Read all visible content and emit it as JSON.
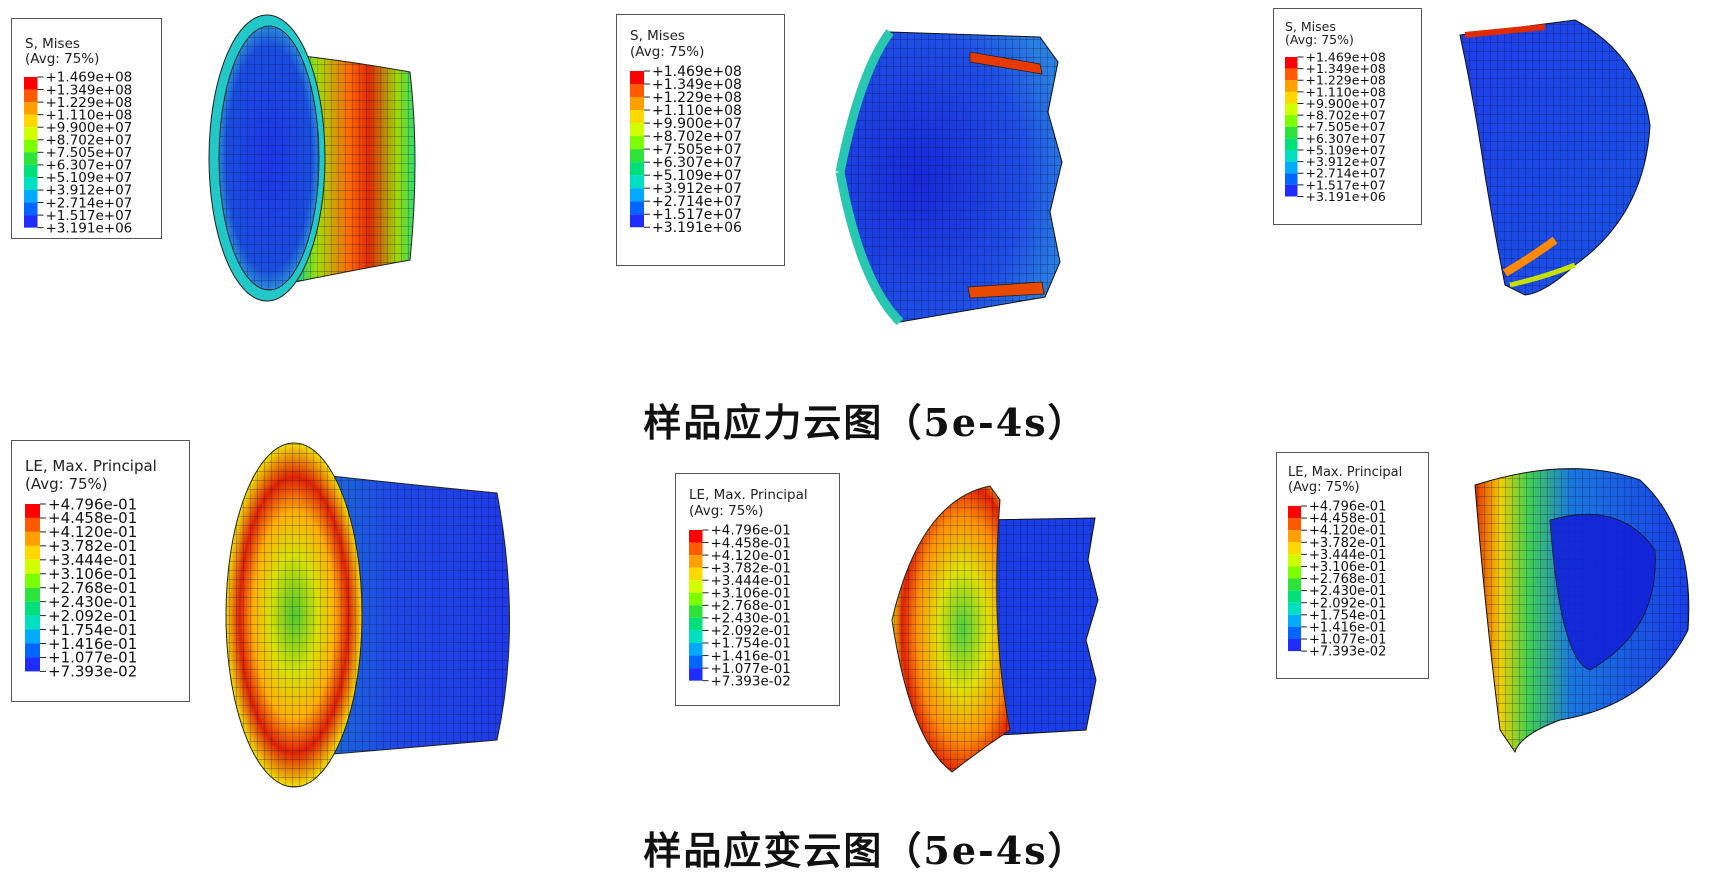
{
  "stress_legend": {
    "title": "S, Mises",
    "avg": "(Avg: 75%)",
    "values": [
      "+1.469e+08",
      "+1.349e+08",
      "+1.229e+08",
      "+1.110e+08",
      "+9.900e+07",
      "+8.702e+07",
      "+7.505e+07",
      "+6.307e+07",
      "+5.109e+07",
      "+3.912e+07",
      "+2.714e+07",
      "+1.517e+07",
      "+3.191e+06"
    ]
  },
  "strain_legend": {
    "title": "LE, Max. Principal",
    "avg": "(Avg: 75%)",
    "values": [
      "+4.796e-01",
      "+4.458e-01",
      "+4.120e-01",
      "+3.782e-01",
      "+3.444e-01",
      "+3.106e-01",
      "+2.768e-01",
      "+2.430e-01",
      "+2.092e-01",
      "+1.754e-01",
      "+1.416e-01",
      "+1.077e-01",
      "+7.393e-02"
    ]
  },
  "contour_colors": [
    "#ff0000",
    "#ff5a00",
    "#ff9f00",
    "#ffd800",
    "#d0ff00",
    "#7cff00",
    "#2de33a",
    "#00e07a",
    "#00e0c0",
    "#00aaff",
    "#0066ff",
    "#1f2cff",
    "#0000d8"
  ],
  "captions": {
    "stress": "样品应力云图（5e-4s）",
    "strain": "样品应变云图（5e-4s）"
  }
}
